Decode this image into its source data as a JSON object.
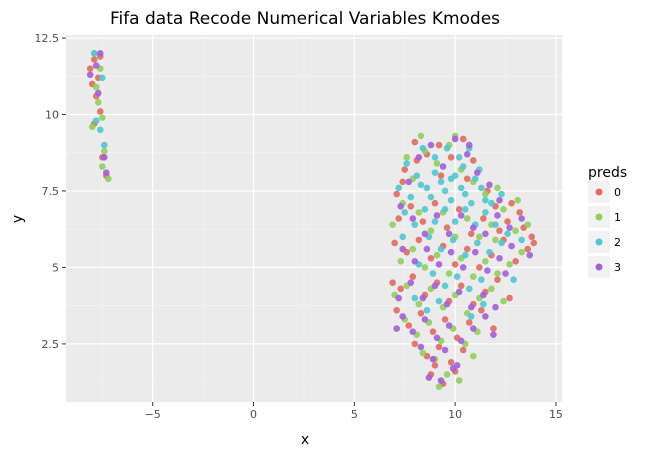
{
  "chart_data": {
    "type": "scatter",
    "title": "Fifa data Recode Numerical Variables Kmodes",
    "xlabel": "x",
    "ylabel": "y",
    "xlim": [
      -9.3,
      15.3
    ],
    "ylim": [
      0.6,
      12.6
    ],
    "x_ticks": [
      {
        "value": -5,
        "label": "−5"
      },
      {
        "value": 0,
        "label": "0"
      },
      {
        "value": 5,
        "label": "5"
      },
      {
        "value": 10,
        "label": "10"
      },
      {
        "value": 15,
        "label": "15"
      }
    ],
    "y_ticks": [
      {
        "value": 2.5,
        "label": "2.5"
      },
      {
        "value": 5,
        "label": "5"
      },
      {
        "value": 7.5,
        "label": "7.5"
      },
      {
        "value": 10,
        "label": "10"
      },
      {
        "value": 12.5,
        "label": "12.5"
      }
    ],
    "grid": true,
    "legend": {
      "title": "preds",
      "position": "right"
    },
    "series": [
      {
        "name": "0",
        "color": "#E16A61",
        "points": [
          [
            -8.1,
            11.5
          ],
          [
            -7.9,
            11.8
          ],
          [
            -7.7,
            11.2
          ],
          [
            -7.8,
            10.6
          ],
          [
            -7.6,
            10.1
          ],
          [
            -7.9,
            9.7
          ],
          [
            -7.5,
            8.6
          ],
          [
            -7.3,
            8.0
          ],
          [
            -7.6,
            11.9
          ],
          [
            -8.0,
            11.0
          ],
          [
            7.1,
            7.4
          ],
          [
            7.5,
            8.2
          ],
          [
            8.0,
            9.1
          ],
          [
            8.6,
            8.7
          ],
          [
            9.2,
            9.0
          ],
          [
            9.8,
            8.6
          ],
          [
            10.4,
            9.2
          ],
          [
            10.9,
            8.5
          ],
          [
            7.2,
            6.6
          ],
          [
            7.8,
            7.0
          ],
          [
            8.4,
            6.5
          ],
          [
            9.0,
            7.1
          ],
          [
            9.6,
            6.3
          ],
          [
            10.2,
            6.9
          ],
          [
            10.8,
            6.1
          ],
          [
            11.4,
            6.6
          ],
          [
            12.0,
            7.0
          ],
          [
            12.6,
            6.5
          ],
          [
            13.2,
            6.8
          ],
          [
            13.8,
            6.0
          ],
          [
            7.0,
            5.8
          ],
          [
            7.6,
            5.5
          ],
          [
            8.2,
            5.9
          ],
          [
            8.8,
            5.3
          ],
          [
            9.4,
            5.7
          ],
          [
            10.0,
            5.1
          ],
          [
            10.6,
            5.6
          ],
          [
            11.2,
            5.0
          ],
          [
            11.8,
            5.4
          ],
          [
            12.4,
            5.9
          ],
          [
            13.0,
            5.2
          ],
          [
            13.6,
            5.6
          ],
          [
            7.3,
            4.3
          ],
          [
            7.9,
            4.7
          ],
          [
            8.5,
            4.1
          ],
          [
            9.1,
            4.5
          ],
          [
            9.7,
            3.9
          ],
          [
            10.3,
            4.4
          ],
          [
            10.9,
            3.8
          ],
          [
            11.5,
            4.2
          ],
          [
            12.1,
            4.6
          ],
          [
            12.7,
            4.0
          ],
          [
            7.1,
            3.6
          ],
          [
            7.7,
            3.1
          ],
          [
            8.3,
            3.5
          ],
          [
            8.9,
            2.9
          ],
          [
            9.5,
            3.3
          ],
          [
            10.1,
            2.7
          ],
          [
            10.7,
            3.2
          ],
          [
            11.3,
            3.6
          ],
          [
            11.9,
            3.0
          ],
          [
            8.0,
            2.5
          ],
          [
            8.6,
            2.1
          ],
          [
            9.2,
            2.4
          ],
          [
            9.8,
            1.9
          ],
          [
            10.4,
            2.3
          ],
          [
            8.8,
            1.5
          ],
          [
            9.4,
            1.2
          ],
          [
            10.0,
            1.6
          ],
          [
            9.0,
            1.8
          ],
          [
            13.4,
            6.3
          ],
          [
            12.2,
            6.2
          ],
          [
            11.6,
            7.5
          ],
          [
            10.6,
            7.9
          ],
          [
            9.3,
            8.0
          ],
          [
            8.1,
            8.5
          ],
          [
            7.4,
            7.8
          ],
          [
            12.8,
            7.1
          ],
          [
            13.9,
            5.8
          ],
          [
            6.9,
            4.5
          ]
        ]
      },
      {
        "name": "1",
        "color": "#8FCF5A",
        "points": [
          [
            -7.9,
            12.0
          ],
          [
            -7.6,
            11.5
          ],
          [
            -7.8,
            10.9
          ],
          [
            -7.7,
            10.4
          ],
          [
            -7.5,
            9.9
          ],
          [
            -8.0,
            9.6
          ],
          [
            -7.4,
            8.8
          ],
          [
            -7.2,
            7.9
          ],
          [
            -7.5,
            8.3
          ],
          [
            6.9,
            6.4
          ],
          [
            7.4,
            7.1
          ],
          [
            7.9,
            7.9
          ],
          [
            8.5,
            8.8
          ],
          [
            9.1,
            8.4
          ],
          [
            9.7,
            9.0
          ],
          [
            10.3,
            8.2
          ],
          [
            10.9,
            7.8
          ],
          [
            11.5,
            7.4
          ],
          [
            12.1,
            7.6
          ],
          [
            8.2,
            6.8
          ],
          [
            8.8,
            6.2
          ],
          [
            9.4,
            6.8
          ],
          [
            10.0,
            6.0
          ],
          [
            10.6,
            6.6
          ],
          [
            11.2,
            6.0
          ],
          [
            11.8,
            6.4
          ],
          [
            12.4,
            6.9
          ],
          [
            13.0,
            6.2
          ],
          [
            13.6,
            6.4
          ],
          [
            7.3,
            5.2
          ],
          [
            7.9,
            5.6
          ],
          [
            8.5,
            5.0
          ],
          [
            9.1,
            5.4
          ],
          [
            9.7,
            4.8
          ],
          [
            10.3,
            5.3
          ],
          [
            10.9,
            4.7
          ],
          [
            11.5,
            5.2
          ],
          [
            12.1,
            4.8
          ],
          [
            12.7,
            5.1
          ],
          [
            13.3,
            5.5
          ],
          [
            7.0,
            4.1
          ],
          [
            7.6,
            4.4
          ],
          [
            8.2,
            3.8
          ],
          [
            8.8,
            4.3
          ],
          [
            9.4,
            3.7
          ],
          [
            10.0,
            4.1
          ],
          [
            10.6,
            3.5
          ],
          [
            11.2,
            4.0
          ],
          [
            11.8,
            4.3
          ],
          [
            12.4,
            3.9
          ],
          [
            7.5,
            3.3
          ],
          [
            8.1,
            2.8
          ],
          [
            8.7,
            3.2
          ],
          [
            9.3,
            2.6
          ],
          [
            9.9,
            3.0
          ],
          [
            10.5,
            2.5
          ],
          [
            11.1,
            2.9
          ],
          [
            8.4,
            2.2
          ],
          [
            9.0,
            2.0
          ],
          [
            9.6,
            1.5
          ],
          [
            10.2,
            1.3
          ],
          [
            9.2,
            1.1
          ],
          [
            10.9,
            2.1
          ],
          [
            12.0,
            5.9
          ],
          [
            13.1,
            7.2
          ],
          [
            10.0,
            9.3
          ],
          [
            8.3,
            9.3
          ],
          [
            7.6,
            8.6
          ]
        ]
      },
      {
        "name": "2",
        "color": "#4FC7D1",
        "points": [
          [
            -7.8,
            9.8
          ],
          [
            -7.6,
            9.5
          ],
          [
            -7.4,
            9.0
          ],
          [
            -7.5,
            11.2
          ],
          [
            -7.9,
            12.0
          ],
          [
            7.2,
            7.6
          ],
          [
            7.6,
            8.4
          ],
          [
            8.1,
            8.0
          ],
          [
            8.6,
            7.6
          ],
          [
            9.0,
            8.1
          ],
          [
            9.5,
            7.5
          ],
          [
            10.0,
            8.0
          ],
          [
            10.5,
            7.4
          ],
          [
            11.0,
            7.9
          ],
          [
            11.5,
            7.2
          ],
          [
            7.8,
            7.3
          ],
          [
            8.3,
            7.7
          ],
          [
            8.8,
            7.3
          ],
          [
            9.3,
            7.8
          ],
          [
            9.8,
            7.2
          ],
          [
            10.3,
            7.6
          ],
          [
            10.8,
            7.1
          ],
          [
            11.3,
            7.6
          ],
          [
            11.8,
            7.1
          ],
          [
            12.3,
            7.4
          ],
          [
            7.5,
            6.8
          ],
          [
            8.0,
            6.4
          ],
          [
            8.5,
            6.9
          ],
          [
            9.0,
            6.5
          ],
          [
            9.5,
            6.9
          ],
          [
            10.0,
            6.5
          ],
          [
            10.5,
            6.9
          ],
          [
            11.0,
            6.4
          ],
          [
            11.5,
            6.8
          ],
          [
            12.0,
            6.4
          ],
          [
            8.4,
            8.9
          ],
          [
            9.0,
            8.6
          ],
          [
            9.6,
            8.9
          ],
          [
            10.2,
            8.6
          ],
          [
            10.7,
            8.9
          ],
          [
            9.8,
            7.9
          ],
          [
            10.4,
            8.3
          ],
          [
            11.2,
            8.2
          ],
          [
            8.7,
            6.0
          ],
          [
            9.3,
            5.6
          ],
          [
            9.9,
            5.9
          ],
          [
            10.5,
            5.4
          ],
          [
            11.1,
            5.8
          ],
          [
            11.7,
            5.5
          ],
          [
            12.3,
            5.8
          ],
          [
            8.9,
            4.8
          ],
          [
            9.5,
            4.4
          ],
          [
            10.1,
            4.7
          ],
          [
            10.7,
            4.3
          ],
          [
            11.3,
            4.6
          ],
          [
            8.0,
            4.0
          ],
          [
            8.6,
            3.6
          ],
          [
            9.2,
            3.9
          ],
          [
            10.8,
            3.4
          ],
          [
            11.4,
            3.8
          ],
          [
            12.6,
            6.1
          ],
          [
            13.3,
            5.9
          ],
          [
            7.4,
            6.0
          ],
          [
            8.2,
            5.1
          ],
          [
            12.9,
            4.6
          ]
        ]
      },
      {
        "name": "3",
        "color": "#A35EDB",
        "points": [
          [
            -7.6,
            12.0
          ],
          [
            -8.1,
            11.3
          ],
          [
            -7.7,
            10.7
          ],
          [
            -7.4,
            8.6
          ],
          [
            -7.3,
            8.1
          ],
          [
            -7.8,
            11.6
          ],
          [
            7.3,
            7.0
          ],
          [
            7.7,
            7.8
          ],
          [
            8.2,
            8.6
          ],
          [
            8.8,
            9.0
          ],
          [
            9.4,
            8.3
          ],
          [
            10.0,
            9.2
          ],
          [
            10.6,
            8.7
          ],
          [
            11.1,
            8.1
          ],
          [
            11.7,
            7.7
          ],
          [
            12.2,
            7.2
          ],
          [
            7.9,
            6.6
          ],
          [
            8.5,
            6.1
          ],
          [
            9.1,
            6.7
          ],
          [
            9.7,
            6.1
          ],
          [
            10.3,
            6.7
          ],
          [
            10.9,
            6.3
          ],
          [
            11.5,
            6.1
          ],
          [
            12.1,
            6.7
          ],
          [
            12.7,
            6.3
          ],
          [
            13.3,
            6.6
          ],
          [
            7.4,
            5.6
          ],
          [
            8.0,
            5.2
          ],
          [
            8.6,
            5.6
          ],
          [
            9.2,
            5.1
          ],
          [
            9.8,
            5.5
          ],
          [
            10.4,
            5.0
          ],
          [
            11.0,
            5.5
          ],
          [
            11.6,
            4.9
          ],
          [
            12.2,
            5.3
          ],
          [
            12.8,
            5.7
          ],
          [
            7.2,
            4.0
          ],
          [
            7.8,
            4.5
          ],
          [
            8.4,
            4.0
          ],
          [
            9.0,
            4.4
          ],
          [
            9.6,
            3.8
          ],
          [
            10.2,
            4.2
          ],
          [
            10.8,
            3.7
          ],
          [
            11.4,
            4.1
          ],
          [
            12.0,
            3.7
          ],
          [
            7.4,
            3.4
          ],
          [
            7.9,
            2.9
          ],
          [
            8.5,
            3.3
          ],
          [
            9.1,
            2.7
          ],
          [
            9.7,
            3.1
          ],
          [
            10.3,
            2.6
          ],
          [
            10.9,
            3.0
          ],
          [
            11.5,
            3.4
          ],
          [
            8.3,
            2.4
          ],
          [
            8.9,
            2.0
          ],
          [
            9.5,
            2.3
          ],
          [
            10.1,
            1.8
          ],
          [
            8.7,
            1.4
          ],
          [
            9.3,
            1.3
          ],
          [
            9.9,
            1.7
          ],
          [
            13.7,
            5.4
          ],
          [
            12.5,
            4.8
          ],
          [
            11.9,
            2.8
          ],
          [
            7.1,
            3.0
          ],
          [
            10.7,
            9.0
          ]
        ]
      }
    ]
  }
}
